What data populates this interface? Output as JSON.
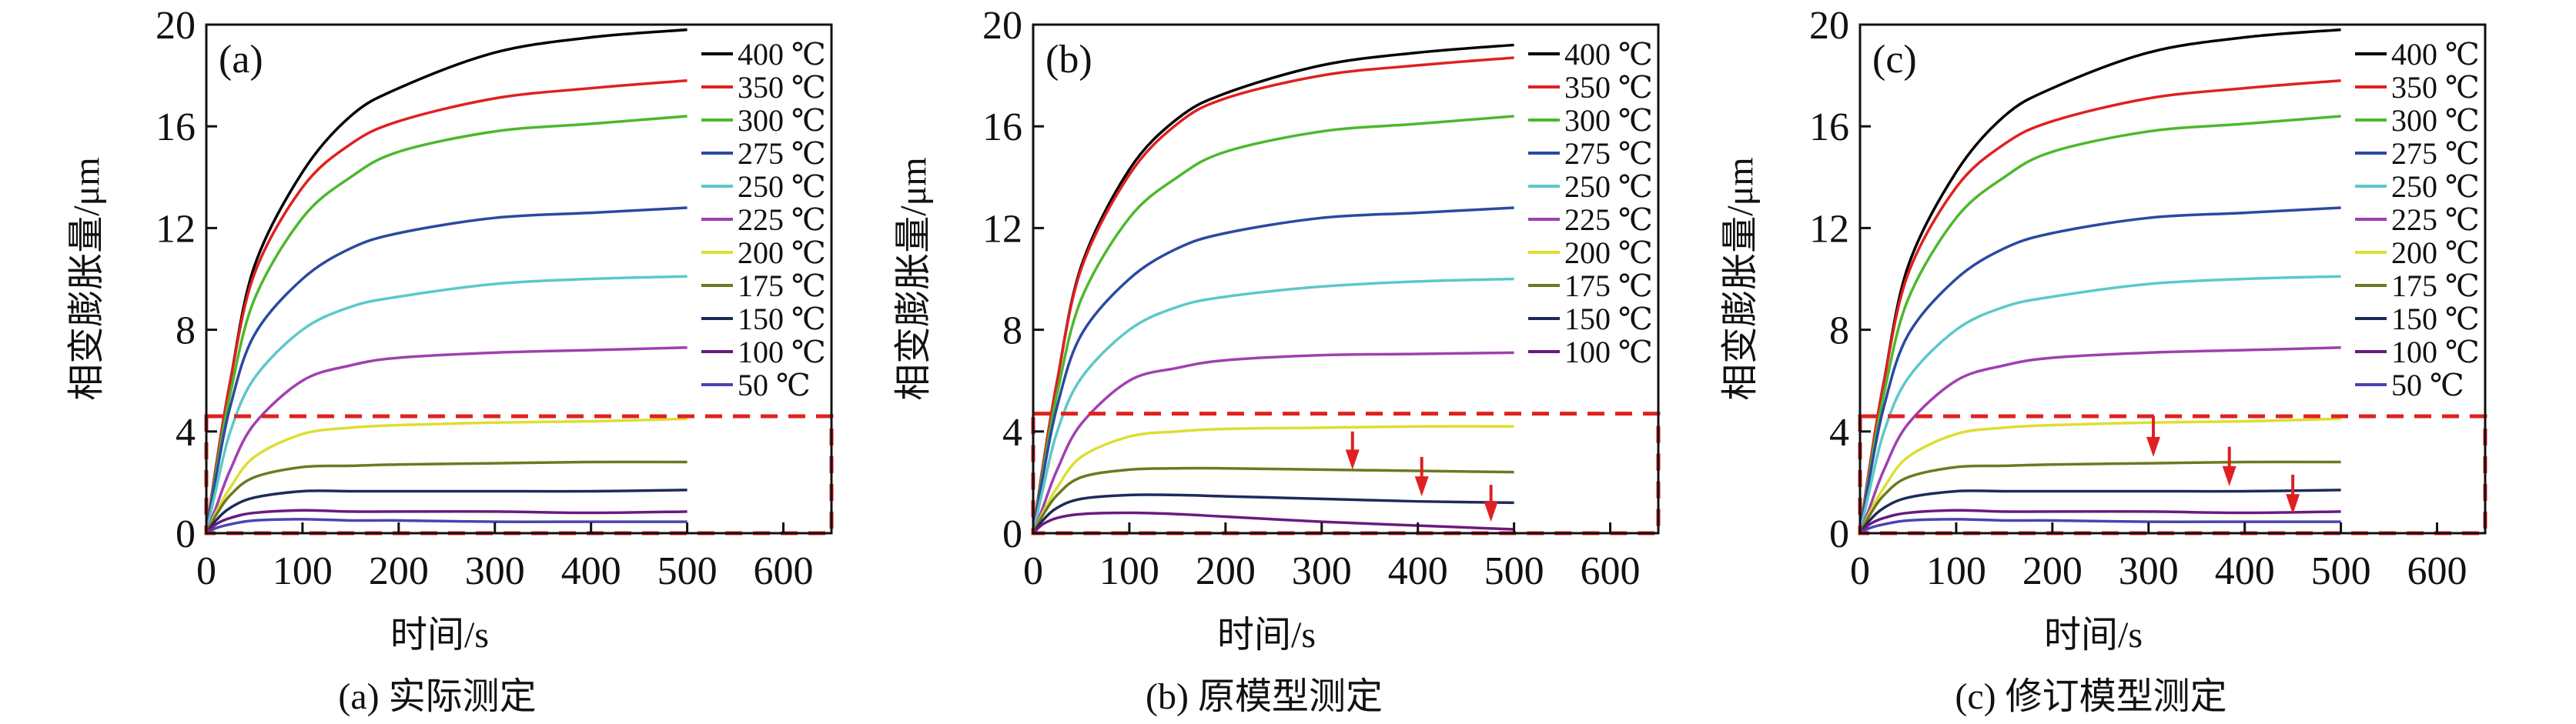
{
  "chart_data": [
    {
      "type": "line",
      "panel_label": "(a)",
      "caption": "(a) 实际测定",
      "xlabel": "时间/s",
      "ylabel": "相变膨胀量/μm",
      "xlim": [
        0,
        650
      ],
      "ylim": [
        0,
        20
      ],
      "xticks": [
        0,
        100,
        200,
        300,
        400,
        500,
        600
      ],
      "yticks": [
        0,
        4,
        8,
        12,
        16,
        20
      ],
      "legend": "top-right",
      "highlight_box": {
        "x": [
          0,
          650
        ],
        "y": [
          0,
          4.6
        ],
        "color": "#e02020",
        "style": "dashed"
      },
      "arrows": [],
      "x": [
        0,
        10,
        25,
        50,
        100,
        150,
        200,
        300,
        400,
        500
      ],
      "series": [
        {
          "name": "400 ℃",
          "color": "#000000",
          "values": [
            0,
            2.6,
            6,
            10.5,
            14.2,
            16.4,
            17.5,
            18.9,
            19.5,
            19.8
          ]
        },
        {
          "name": "350 ℃",
          "color": "#e02020",
          "values": [
            0,
            2.6,
            6,
            10.2,
            13.6,
            15.3,
            16.2,
            17.1,
            17.5,
            17.8
          ]
        },
        {
          "name": "300 ℃",
          "color": "#4cb82c",
          "values": [
            0,
            2.4,
            5.5,
            9.2,
            12.4,
            14,
            15,
            15.8,
            16.1,
            16.4
          ]
        },
        {
          "name": "275 ℃",
          "color": "#2a4aa0",
          "values": [
            0,
            2.2,
            5,
            7.8,
            10,
            11.2,
            11.8,
            12.4,
            12.6,
            12.8
          ]
        },
        {
          "name": "250 ℃",
          "color": "#5cc8c8",
          "values": [
            0,
            1.7,
            4,
            6.1,
            8,
            8.9,
            9.3,
            9.8,
            10,
            10.1
          ]
        },
        {
          "name": "225 ℃",
          "color": "#a040b0",
          "values": [
            0,
            1,
            2.5,
            4.3,
            6,
            6.6,
            6.9,
            7.1,
            7.2,
            7.3
          ]
        },
        {
          "name": "200 ℃",
          "color": "#dede30",
          "values": [
            0,
            0.8,
            1.8,
            3,
            3.9,
            4.15,
            4.25,
            4.35,
            4.4,
            4.5
          ]
        },
        {
          "name": "175 ℃",
          "color": "#6b7a20",
          "values": [
            0,
            0.7,
            1.5,
            2.2,
            2.6,
            2.65,
            2.7,
            2.75,
            2.8,
            2.8
          ]
        },
        {
          "name": "150 ℃",
          "color": "#1e2a5a",
          "values": [
            0,
            0.5,
            1,
            1.4,
            1.65,
            1.65,
            1.65,
            1.65,
            1.65,
            1.7
          ]
        },
        {
          "name": "100 ℃",
          "color": "#6a1a80",
          "values": [
            0,
            0.35,
            0.6,
            0.8,
            0.9,
            0.85,
            0.85,
            0.85,
            0.8,
            0.85
          ]
        },
        {
          "name": "50 ℃",
          "color": "#4a44b0",
          "values": [
            0,
            0.2,
            0.35,
            0.5,
            0.55,
            0.5,
            0.5,
            0.45,
            0.45,
            0.45
          ]
        }
      ]
    },
    {
      "type": "line",
      "panel_label": "(b)",
      "caption": "(b) 原模型测定",
      "xlabel": "时间/s",
      "ylabel": "相变膨胀量/μm",
      "xlim": [
        0,
        650
      ],
      "ylim": [
        0,
        20
      ],
      "xticks": [
        0,
        100,
        200,
        300,
        400,
        500,
        600
      ],
      "yticks": [
        0,
        4,
        8,
        12,
        16,
        20
      ],
      "legend": "top-right",
      "highlight_box": {
        "x": [
          0,
          650
        ],
        "y": [
          0,
          4.7
        ],
        "color": "#e02020",
        "style": "dashed"
      },
      "arrows": [
        {
          "x": 332,
          "y_from": 4.0,
          "y_to": 2.5
        },
        {
          "x": 404,
          "y_from": 3.0,
          "y_to": 1.45
        },
        {
          "x": 476,
          "y_from": 1.9,
          "y_to": 0.45
        }
      ],
      "x": [
        0,
        10,
        25,
        50,
        100,
        150,
        200,
        300,
        400,
        500
      ],
      "series": [
        {
          "name": "400 ℃",
          "color": "#000000",
          "values": [
            0,
            2.6,
            6,
            10.5,
            14.3,
            16.3,
            17.3,
            18.4,
            18.9,
            19.2
          ]
        },
        {
          "name": "350 ℃",
          "color": "#e02020",
          "values": [
            0,
            2.6,
            6,
            10.4,
            14.1,
            16.1,
            17.1,
            18,
            18.4,
            18.7
          ]
        },
        {
          "name": "300 ℃",
          "color": "#4cb82c",
          "values": [
            0,
            2.4,
            5.5,
            9.2,
            12.4,
            14,
            15,
            15.8,
            16.1,
            16.4
          ]
        },
        {
          "name": "275 ℃",
          "color": "#2a4aa0",
          "values": [
            0,
            2.2,
            5,
            7.8,
            10,
            11.2,
            11.8,
            12.4,
            12.6,
            12.8
          ]
        },
        {
          "name": "250 ℃",
          "color": "#5cc8c8",
          "values": [
            0,
            1.7,
            4,
            6.1,
            8,
            8.9,
            9.3,
            9.7,
            9.9,
            10.0
          ]
        },
        {
          "name": "225 ℃",
          "color": "#a040b0",
          "values": [
            0,
            1,
            2.5,
            4.3,
            6,
            6.5,
            6.8,
            7.0,
            7.05,
            7.1
          ]
        },
        {
          "name": "200 ℃",
          "color": "#dede30",
          "values": [
            0,
            0.8,
            1.8,
            3,
            3.8,
            4,
            4.1,
            4.15,
            4.2,
            4.2
          ]
        },
        {
          "name": "175 ℃",
          "color": "#6b7a20",
          "values": [
            0,
            0.7,
            1.5,
            2.2,
            2.5,
            2.55,
            2.55,
            2.5,
            2.45,
            2.4
          ]
        },
        {
          "name": "150 ℃",
          "color": "#1e2a5a",
          "values": [
            0,
            0.5,
            1,
            1.35,
            1.5,
            1.5,
            1.45,
            1.35,
            1.25,
            1.2
          ]
        },
        {
          "name": "100 ℃",
          "color": "#6a1a80",
          "values": [
            0,
            0.35,
            0.6,
            0.75,
            0.8,
            0.75,
            0.65,
            0.45,
            0.3,
            0.15
          ]
        }
      ]
    },
    {
      "type": "line",
      "panel_label": "(c)",
      "caption": "(c) 修订模型测定",
      "xlabel": "时间/s",
      "ylabel": "相变膨胀量/μm",
      "xlim": [
        0,
        650
      ],
      "ylim": [
        0,
        20
      ],
      "xticks": [
        0,
        100,
        200,
        300,
        400,
        500,
        600
      ],
      "yticks": [
        0,
        4,
        8,
        12,
        16,
        20
      ],
      "legend": "top-right",
      "highlight_box": {
        "x": [
          0,
          650
        ],
        "y": [
          0,
          4.6
        ],
        "color": "#e02020",
        "style": "dashed"
      },
      "arrows": [
        {
          "x": 305,
          "y_from": 4.6,
          "y_to": 3.0
        },
        {
          "x": 384,
          "y_from": 3.4,
          "y_to": 1.85
        },
        {
          "x": 450,
          "y_from": 2.3,
          "y_to": 0.75
        }
      ],
      "x": [
        0,
        10,
        25,
        50,
        100,
        150,
        200,
        300,
        400,
        500
      ],
      "series": [
        {
          "name": "400 ℃",
          "color": "#000000",
          "values": [
            0,
            2.6,
            6,
            10.5,
            14.2,
            16.4,
            17.5,
            18.9,
            19.5,
            19.8
          ]
        },
        {
          "name": "350 ℃",
          "color": "#e02020",
          "values": [
            0,
            2.6,
            6,
            10.2,
            13.6,
            15.3,
            16.2,
            17.1,
            17.5,
            17.8
          ]
        },
        {
          "name": "300 ℃",
          "color": "#4cb82c",
          "values": [
            0,
            2.4,
            5.5,
            9.2,
            12.4,
            14,
            15,
            15.8,
            16.1,
            16.4
          ]
        },
        {
          "name": "275 ℃",
          "color": "#2a4aa0",
          "values": [
            0,
            2.2,
            5,
            7.8,
            10,
            11.2,
            11.8,
            12.4,
            12.6,
            12.8
          ]
        },
        {
          "name": "250 ℃",
          "color": "#5cc8c8",
          "values": [
            0,
            1.7,
            4,
            6.1,
            8,
            8.9,
            9.3,
            9.8,
            10,
            10.1
          ]
        },
        {
          "name": "225 ℃",
          "color": "#a040b0",
          "values": [
            0,
            1,
            2.5,
            4.3,
            6,
            6.6,
            6.9,
            7.1,
            7.2,
            7.3
          ]
        },
        {
          "name": "200 ℃",
          "color": "#dede30",
          "values": [
            0,
            0.8,
            1.8,
            3,
            3.9,
            4.15,
            4.25,
            4.35,
            4.4,
            4.5
          ]
        },
        {
          "name": "175 ℃",
          "color": "#6b7a20",
          "values": [
            0,
            0.7,
            1.5,
            2.2,
            2.6,
            2.65,
            2.7,
            2.75,
            2.8,
            2.8
          ]
        },
        {
          "name": "150 ℃",
          "color": "#1e2a5a",
          "values": [
            0,
            0.5,
            1,
            1.4,
            1.65,
            1.65,
            1.65,
            1.65,
            1.65,
            1.7
          ]
        },
        {
          "name": "100 ℃",
          "color": "#6a1a80",
          "values": [
            0,
            0.35,
            0.6,
            0.8,
            0.9,
            0.85,
            0.85,
            0.85,
            0.8,
            0.85
          ]
        },
        {
          "name": "50 ℃",
          "color": "#4a44b0",
          "values": [
            0,
            0.2,
            0.35,
            0.5,
            0.55,
            0.5,
            0.5,
            0.45,
            0.45,
            0.45
          ]
        }
      ]
    }
  ]
}
